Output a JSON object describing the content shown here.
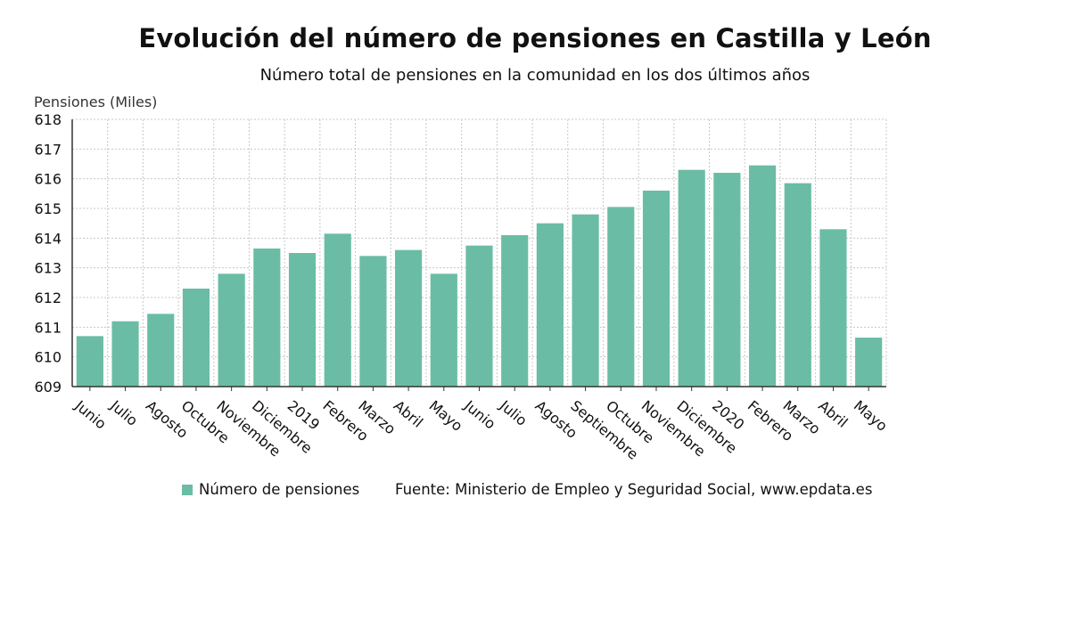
{
  "header": {
    "title": "Evolución del número de pensiones en Castilla y León",
    "subtitle": "Número total de pensiones en la comunidad en los dos últimos años"
  },
  "legend": {
    "series_label": "Número de pensiones",
    "source": "Fuente: Ministerio de Empleo y Seguridad Social, www.epdata.es"
  },
  "colors": {
    "bar": "#6abda4",
    "grid": "#c8c8c8",
    "axis": "#333333",
    "text": "#111111"
  },
  "chart_data": {
    "type": "bar",
    "title": "Evolución del número de pensiones en Castilla y León",
    "subtitle": "Número total de pensiones en la comunidad en los dos últimos años",
    "xlabel": "",
    "ylabel": "Pensiones (Miles)",
    "ylim": [
      609,
      618
    ],
    "yticks": [
      609,
      610,
      611,
      612,
      613,
      614,
      615,
      616,
      617,
      618
    ],
    "grid": true,
    "legend_position": "bottom",
    "categories": [
      "Junio",
      "Julio",
      "Agosto",
      "Octubre",
      "Noviembre",
      "Diciembre",
      "2019",
      "Febrero",
      "Marzo",
      "Abril",
      "Mayo",
      "Junio",
      "Julio",
      "Agosto",
      "Septiembre",
      "Octubre",
      "Noviembre",
      "Diciembre",
      "2020",
      "Febrero",
      "Marzo",
      "Abril",
      "Mayo"
    ],
    "series": [
      {
        "name": "Número de pensiones",
        "values": [
          610.7,
          611.2,
          611.45,
          612.3,
          612.8,
          613.65,
          613.5,
          614.15,
          613.4,
          613.6,
          612.8,
          613.75,
          614.1,
          614.5,
          614.8,
          615.05,
          615.6,
          616.3,
          616.2,
          616.45,
          615.85,
          614.3,
          610.65
        ]
      }
    ]
  }
}
